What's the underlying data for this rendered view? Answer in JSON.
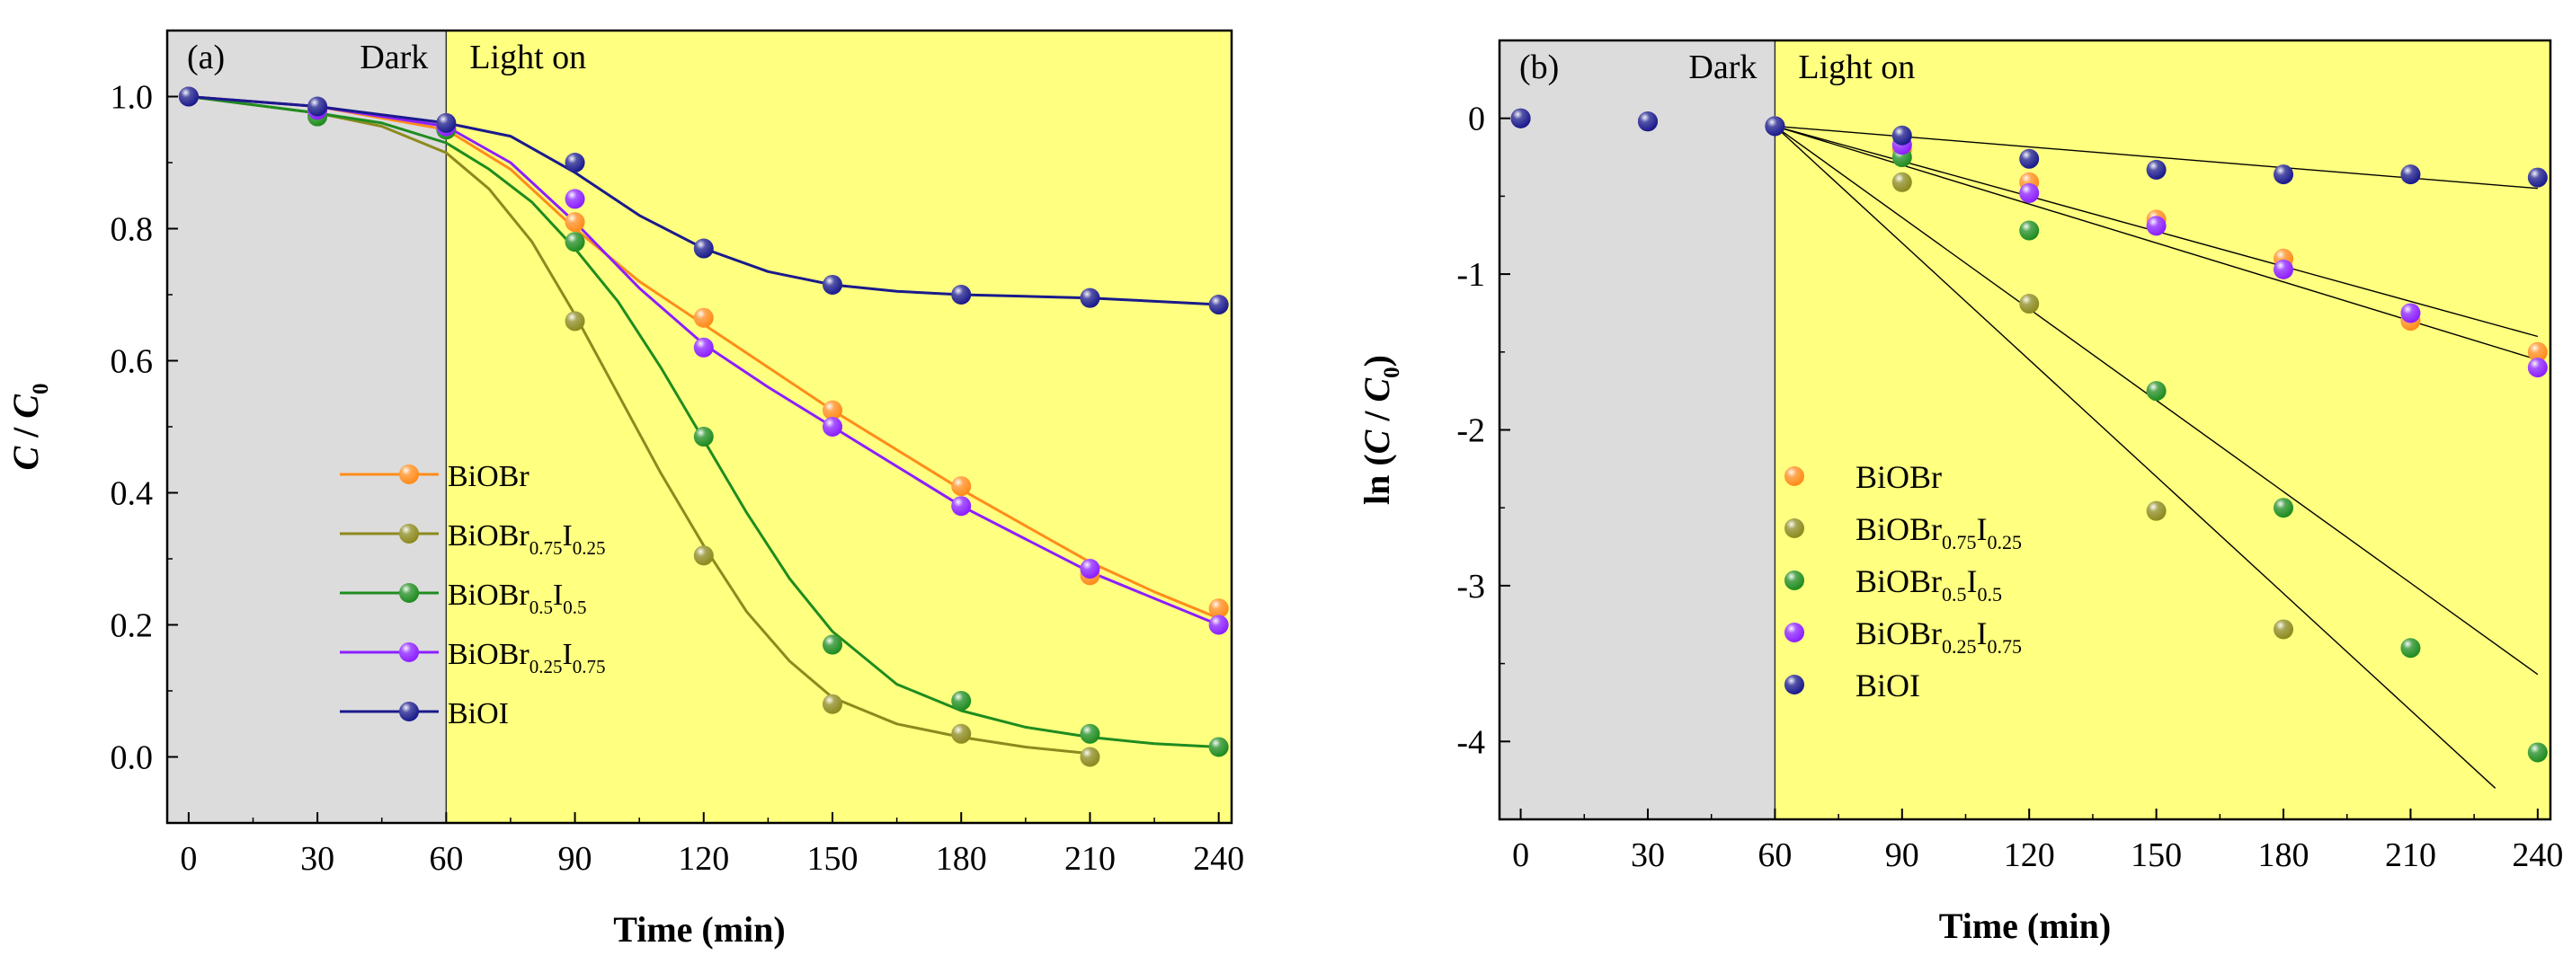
{
  "chart_data": [
    {
      "type": "line",
      "panel_label": "(a)",
      "region_labels": {
        "dark": "Dark",
        "light": "Light on"
      },
      "xlabel": "Time (min)",
      "ylabel": [
        {
          "t": "C",
          "style": "italic"
        },
        {
          "t": " / "
        },
        {
          "t": "C",
          "style": "italic"
        },
        {
          "t": "0",
          "sub": true
        }
      ],
      "xlim": [
        -5,
        243
      ],
      "ylim": [
        -0.1,
        1.1
      ],
      "xticks": [
        0,
        30,
        60,
        90,
        120,
        150,
        180,
        210,
        240
      ],
      "yticks": [
        0.0,
        0.2,
        0.4,
        0.6,
        0.8,
        1.0
      ],
      "ytick_labels": [
        "0.0",
        "0.2",
        "0.4",
        "0.6",
        "0.8",
        "1.0"
      ],
      "dark_range": [
        -5,
        60
      ],
      "legend_position": "center-left",
      "series": [
        {
          "name": "BiOBr",
          "label": [
            {
              "t": "BiOBr"
            }
          ],
          "color": "#ff8c1a",
          "x": [
            0,
            30,
            60,
            90,
            120,
            150,
            180,
            210,
            240
          ],
          "y": [
            1.0,
            0.98,
            0.95,
            0.81,
            0.665,
            0.525,
            0.41,
            0.275,
            0.225
          ],
          "fit": [
            [
              0,
              1.0
            ],
            [
              30,
              0.985
            ],
            [
              60,
              0.95
            ],
            [
              75,
              0.89
            ],
            [
              90,
              0.8
            ],
            [
              105,
              0.72
            ],
            [
              120,
              0.655
            ],
            [
              135,
              0.59
            ],
            [
              150,
              0.525
            ],
            [
              165,
              0.465
            ],
            [
              180,
              0.405
            ],
            [
              195,
              0.35
            ],
            [
              210,
              0.295
            ],
            [
              225,
              0.25
            ],
            [
              240,
              0.21
            ]
          ]
        },
        {
          "name": "BiOBr0.75I0.25",
          "label": [
            {
              "t": "BiOBr"
            },
            {
              "t": "0.75",
              "sub": true
            },
            {
              "t": "I"
            },
            {
              "t": "0.25",
              "sub": true
            }
          ],
          "color": "#8c8a1e",
          "x": [
            0,
            30,
            60,
            90,
            120,
            150,
            180,
            210
          ],
          "y": [
            1.0,
            0.97,
            0.95,
            0.66,
            0.305,
            0.08,
            0.035,
            0.0
          ],
          "fit": [
            [
              0,
              1.0
            ],
            [
              30,
              0.975
            ],
            [
              45,
              0.955
            ],
            [
              60,
              0.915
            ],
            [
              70,
              0.86
            ],
            [
              80,
              0.78
            ],
            [
              90,
              0.67
            ],
            [
              100,
              0.55
            ],
            [
              110,
              0.43
            ],
            [
              120,
              0.32
            ],
            [
              130,
              0.22
            ],
            [
              140,
              0.145
            ],
            [
              150,
              0.09
            ],
            [
              165,
              0.05
            ],
            [
              180,
              0.03
            ],
            [
              195,
              0.015
            ],
            [
              210,
              0.005
            ]
          ]
        },
        {
          "name": "BiOBr0.5I0.5",
          "label": [
            {
              "t": "BiOBr"
            },
            {
              "t": "0.5",
              "sub": true
            },
            {
              "t": "I"
            },
            {
              "t": "0.5",
              "sub": true
            }
          ],
          "color": "#1f8c1f",
          "x": [
            0,
            30,
            60,
            90,
            120,
            150,
            180,
            210,
            240
          ],
          "y": [
            1.0,
            0.97,
            0.95,
            0.78,
            0.485,
            0.17,
            0.085,
            0.035,
            0.015
          ],
          "fit": [
            [
              0,
              1.0
            ],
            [
              30,
              0.975
            ],
            [
              45,
              0.96
            ],
            [
              60,
              0.93
            ],
            [
              70,
              0.89
            ],
            [
              80,
              0.84
            ],
            [
              90,
              0.77
            ],
            [
              100,
              0.69
            ],
            [
              110,
              0.59
            ],
            [
              120,
              0.48
            ],
            [
              130,
              0.37
            ],
            [
              140,
              0.27
            ],
            [
              150,
              0.19
            ],
            [
              165,
              0.11
            ],
            [
              180,
              0.07
            ],
            [
              195,
              0.045
            ],
            [
              210,
              0.03
            ],
            [
              225,
              0.02
            ],
            [
              240,
              0.015
            ]
          ]
        },
        {
          "name": "BiOBr0.25I0.75",
          "label": [
            {
              "t": "BiOBr"
            },
            {
              "t": "0.25",
              "sub": true
            },
            {
              "t": "I"
            },
            {
              "t": "0.75",
              "sub": true
            }
          ],
          "color": "#8c1fff",
          "x": [
            0,
            30,
            60,
            90,
            120,
            150,
            180,
            210,
            240
          ],
          "y": [
            1.0,
            0.98,
            0.955,
            0.845,
            0.62,
            0.5,
            0.38,
            0.285,
            0.2
          ],
          "fit": [
            [
              0,
              1.0
            ],
            [
              30,
              0.985
            ],
            [
              60,
              0.955
            ],
            [
              75,
              0.9
            ],
            [
              90,
              0.81
            ],
            [
              105,
              0.71
            ],
            [
              120,
              0.625
            ],
            [
              135,
              0.56
            ],
            [
              150,
              0.5
            ],
            [
              165,
              0.44
            ],
            [
              180,
              0.38
            ],
            [
              195,
              0.33
            ],
            [
              210,
              0.28
            ],
            [
              225,
              0.24
            ],
            [
              240,
              0.2
            ]
          ]
        },
        {
          "name": "BiOI",
          "label": [
            {
              "t": "BiOI"
            }
          ],
          "color": "#1a1a8c",
          "x": [
            0,
            30,
            60,
            90,
            120,
            150,
            180,
            210,
            240
          ],
          "y": [
            1.0,
            0.985,
            0.96,
            0.9,
            0.77,
            0.715,
            0.7,
            0.695,
            0.685
          ],
          "fit": [
            [
              0,
              1.0
            ],
            [
              30,
              0.985
            ],
            [
              60,
              0.96
            ],
            [
              75,
              0.94
            ],
            [
              90,
              0.885
            ],
            [
              105,
              0.82
            ],
            [
              120,
              0.77
            ],
            [
              135,
              0.735
            ],
            [
              150,
              0.715
            ],
            [
              165,
              0.705
            ],
            [
              180,
              0.7
            ],
            [
              210,
              0.695
            ],
            [
              240,
              0.685
            ]
          ]
        }
      ]
    },
    {
      "type": "scatter",
      "panel_label": "(b)",
      "region_labels": {
        "dark": "Dark",
        "light": "Light on"
      },
      "xlabel": "Time (min)",
      "ylabel": [
        {
          "t": "ln ("
        },
        {
          "t": "C",
          "style": "italic"
        },
        {
          "t": " / "
        },
        {
          "t": "C",
          "style": "italic"
        },
        {
          "t": "0",
          "sub": true
        },
        {
          "t": ")"
        }
      ],
      "xlim": [
        -5,
        243
      ],
      "ylim": [
        -4.5,
        0.5
      ],
      "xticks": [
        0,
        30,
        60,
        90,
        120,
        150,
        180,
        210,
        240
      ],
      "yticks": [
        0,
        -1,
        -2,
        -3,
        -4
      ],
      "ytick_labels": [
        "0",
        "-1",
        "-2",
        "-3",
        "-4"
      ],
      "dark_range": [
        -5,
        60
      ],
      "legend_position": "lower-left",
      "series": [
        {
          "name": "BiOBr",
          "label": [
            {
              "t": "BiOBr"
            }
          ],
          "color": "#ff8c1a",
          "x": [
            0,
            30,
            60,
            90,
            120,
            150,
            180,
            210,
            240
          ],
          "y": [
            0,
            -0.02,
            -0.05,
            -0.2,
            -0.41,
            -0.65,
            -0.9,
            -1.3,
            -1.5
          ],
          "fit": [
            [
              60,
              -0.05
            ],
            [
              240,
              -1.4
            ]
          ]
        },
        {
          "name": "BiOBr0.75I0.25",
          "label": [
            {
              "t": "BiOBr"
            },
            {
              "t": "0.75",
              "sub": true
            },
            {
              "t": "I"
            },
            {
              "t": "0.25",
              "sub": true
            }
          ],
          "color": "#8c8a1e",
          "x": [
            0,
            30,
            60,
            90,
            120,
            150,
            180
          ],
          "y": [
            0,
            -0.02,
            -0.05,
            -0.41,
            -1.19,
            -2.52,
            -3.28
          ],
          "fit": [
            [
              60,
              -0.05
            ],
            [
              230,
              -4.3
            ]
          ]
        },
        {
          "name": "BiOBr0.5I0.5",
          "label": [
            {
              "t": "BiOBr"
            },
            {
              "t": "0.5",
              "sub": true
            },
            {
              "t": "I"
            },
            {
              "t": "0.5",
              "sub": true
            }
          ],
          "color": "#1f8c1f",
          "x": [
            0,
            30,
            60,
            90,
            120,
            150,
            180,
            210,
            240
          ],
          "y": [
            0,
            -0.02,
            -0.05,
            -0.25,
            -0.72,
            -1.75,
            -2.5,
            -3.4,
            -4.07
          ],
          "fit": [
            [
              60,
              -0.05
            ],
            [
              240,
              -3.57
            ]
          ]
        },
        {
          "name": "BiOBr0.25I0.75",
          "label": [
            {
              "t": "BiOBr"
            },
            {
              "t": "0.25",
              "sub": true
            },
            {
              "t": "I"
            },
            {
              "t": "0.75",
              "sub": true
            }
          ],
          "color": "#8c1fff",
          "x": [
            0,
            30,
            60,
            90,
            120,
            150,
            180,
            210,
            240
          ],
          "y": [
            0,
            -0.02,
            -0.05,
            -0.17,
            -0.48,
            -0.69,
            -0.97,
            -1.25,
            -1.6
          ],
          "fit": [
            [
              60,
              -0.05
            ],
            [
              240,
              -1.55
            ]
          ]
        },
        {
          "name": "BiOI",
          "label": [
            {
              "t": "BiOI"
            }
          ],
          "color": "#1a1a8c",
          "x": [
            0,
            30,
            60,
            90,
            120,
            150,
            180,
            210,
            240
          ],
          "y": [
            0,
            -0.02,
            -0.05,
            -0.11,
            -0.26,
            -0.33,
            -0.36,
            -0.36,
            -0.38
          ],
          "fit": [
            [
              60,
              -0.05
            ],
            [
              240,
              -0.45
            ]
          ]
        }
      ]
    }
  ]
}
